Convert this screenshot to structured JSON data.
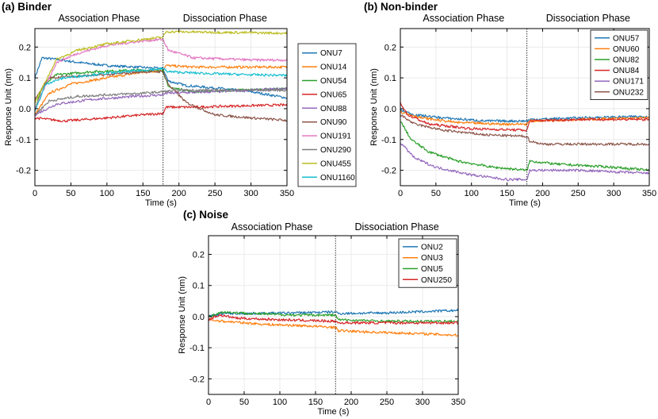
{
  "chart_data": [
    {
      "type": "line",
      "title": "(a) Binder",
      "phase_labels": [
        "Association Phase",
        "Dissociation Phase"
      ],
      "phase_split": 178,
      "xlabel": "Time (s)",
      "ylabel": "Response Unit (nm)",
      "xlim": [
        0,
        350
      ],
      "ylim": [
        -0.25,
        0.26
      ],
      "xticks": [
        0,
        50,
        100,
        150,
        200,
        250,
        300,
        350
      ],
      "yticks": [
        -0.2,
        -0.1,
        0.0,
        0.1,
        0.2
      ],
      "legend_position": "outside-right",
      "series": [
        {
          "name": "ONU7",
          "color": "#1f77b4",
          "points": [
            [
              0,
              0.1
            ],
            [
              10,
              0.165
            ],
            [
              30,
              0.16
            ],
            [
              60,
              0.15
            ],
            [
              100,
              0.14
            ],
            [
              140,
              0.135
            ],
            [
              178,
              0.13
            ],
            [
              185,
              0.09
            ],
            [
              210,
              0.075
            ],
            [
              260,
              0.065
            ],
            [
              300,
              0.055
            ],
            [
              350,
              0.035
            ]
          ]
        },
        {
          "name": "ONU14",
          "color": "#ff7f0e",
          "points": [
            [
              0,
              -0.02
            ],
            [
              20,
              0.05
            ],
            [
              50,
              0.08
            ],
            [
              100,
              0.1
            ],
            [
              140,
              0.115
            ],
            [
              178,
              0.125
            ],
            [
              182,
              0.14
            ],
            [
              220,
              0.135
            ],
            [
              300,
              0.135
            ],
            [
              350,
              0.135
            ]
          ]
        },
        {
          "name": "ONU54",
          "color": "#2ca02c",
          "points": [
            [
              0,
              0.0
            ],
            [
              10,
              0.07
            ],
            [
              30,
              0.11
            ],
            [
              80,
              0.12
            ],
            [
              140,
              0.125
            ],
            [
              178,
              0.125
            ],
            [
              185,
              0.07
            ],
            [
              220,
              0.055
            ],
            [
              280,
              0.06
            ],
            [
              350,
              0.065
            ]
          ]
        },
        {
          "name": "ONU65",
          "color": "#d62728",
          "points": [
            [
              0,
              -0.03
            ],
            [
              40,
              -0.04
            ],
            [
              100,
              -0.03
            ],
            [
              150,
              -0.02
            ],
            [
              178,
              -0.015
            ],
            [
              182,
              0.005
            ],
            [
              220,
              0.005
            ],
            [
              300,
              0.01
            ],
            [
              350,
              0.012
            ]
          ]
        },
        {
          "name": "ONU88",
          "color": "#9467bd",
          "points": [
            [
              0,
              -0.02
            ],
            [
              30,
              0.015
            ],
            [
              80,
              0.03
            ],
            [
              140,
              0.04
            ],
            [
              178,
              0.045
            ],
            [
              182,
              0.05
            ],
            [
              250,
              0.055
            ],
            [
              350,
              0.065
            ]
          ]
        },
        {
          "name": "ONU90",
          "color": "#8c564b",
          "points": [
            [
              0,
              0.03
            ],
            [
              20,
              0.1
            ],
            [
              50,
              0.105
            ],
            [
              100,
              0.11
            ],
            [
              150,
              0.12
            ],
            [
              178,
              0.12
            ],
            [
              185,
              0.08
            ],
            [
              210,
              0.02
            ],
            [
              250,
              -0.02
            ],
            [
              300,
              -0.03
            ],
            [
              350,
              -0.038
            ]
          ]
        },
        {
          "name": "ONU191",
          "color": "#e377c2",
          "points": [
            [
              0,
              0.0
            ],
            [
              30,
              0.15
            ],
            [
              60,
              0.18
            ],
            [
              100,
              0.205
            ],
            [
              150,
              0.22
            ],
            [
              178,
              0.225
            ],
            [
              185,
              0.19
            ],
            [
              220,
              0.165
            ],
            [
              300,
              0.158
            ],
            [
              350,
              0.158
            ]
          ]
        },
        {
          "name": "ONU290",
          "color": "#7f7f7f",
          "points": [
            [
              0,
              -0.02
            ],
            [
              20,
              0.025
            ],
            [
              60,
              0.04
            ],
            [
              100,
              0.045
            ],
            [
              150,
              0.05
            ],
            [
              178,
              0.055
            ],
            [
              200,
              0.06
            ],
            [
              300,
              0.06
            ],
            [
              350,
              0.06
            ]
          ]
        },
        {
          "name": "ONU455",
          "color": "#bcbd22",
          "points": [
            [
              0,
              0.02
            ],
            [
              30,
              0.16
            ],
            [
              60,
              0.19
            ],
            [
              100,
              0.21
            ],
            [
              150,
              0.225
            ],
            [
              178,
              0.232
            ],
            [
              182,
              0.25
            ],
            [
              250,
              0.248
            ],
            [
              350,
              0.245
            ]
          ]
        },
        {
          "name": "ONU1160",
          "color": "#17becf",
          "points": [
            [
              0,
              -0.01
            ],
            [
              15,
              0.08
            ],
            [
              40,
              0.1
            ],
            [
              100,
              0.115
            ],
            [
              178,
              0.13
            ],
            [
              185,
              0.12
            ],
            [
              230,
              0.115
            ],
            [
              300,
              0.11
            ],
            [
              350,
              0.108
            ]
          ]
        }
      ]
    },
    {
      "type": "line",
      "title": "(b) Non-binder",
      "phase_labels": [
        "Association Phase",
        "Dissociation Phase"
      ],
      "phase_split": 178,
      "xlabel": "Time (s)",
      "ylabel": "Response Unit (nm)",
      "xlim": [
        0,
        350
      ],
      "ylim": [
        -0.25,
        0.26
      ],
      "xticks": [
        0,
        50,
        100,
        150,
        200,
        250,
        300,
        350
      ],
      "yticks": [
        -0.2,
        -0.1,
        0.0,
        0.1,
        0.2
      ],
      "legend_position": "top-right",
      "series": [
        {
          "name": "ONU57",
          "color": "#1f77b4",
          "points": [
            [
              0,
              -0.005
            ],
            [
              20,
              -0.02
            ],
            [
              60,
              -0.03
            ],
            [
              120,
              -0.04
            ],
            [
              178,
              -0.04
            ],
            [
              182,
              -0.035
            ],
            [
              250,
              -0.03
            ],
            [
              350,
              -0.025
            ]
          ]
        },
        {
          "name": "ONU60",
          "color": "#ff7f0e",
          "points": [
            [
              0,
              -0.01
            ],
            [
              30,
              -0.03
            ],
            [
              80,
              -0.045
            ],
            [
              140,
              -0.05
            ],
            [
              178,
              -0.05
            ],
            [
              182,
              -0.04
            ],
            [
              250,
              -0.035
            ],
            [
              350,
              -0.03
            ]
          ]
        },
        {
          "name": "ONU82",
          "color": "#2ca02c",
          "points": [
            [
              0,
              -0.04
            ],
            [
              15,
              -0.1
            ],
            [
              40,
              -0.14
            ],
            [
              80,
              -0.17
            ],
            [
              130,
              -0.19
            ],
            [
              178,
              -0.2
            ],
            [
              182,
              -0.17
            ],
            [
              220,
              -0.18
            ],
            [
              300,
              -0.19
            ],
            [
              350,
              -0.2
            ]
          ]
        },
        {
          "name": "ONU84",
          "color": "#d62728",
          "points": [
            [
              0,
              0.02
            ],
            [
              10,
              -0.02
            ],
            [
              40,
              -0.05
            ],
            [
              100,
              -0.065
            ],
            [
              178,
              -0.07
            ],
            [
              182,
              -0.04
            ],
            [
              250,
              -0.035
            ],
            [
              350,
              -0.035
            ]
          ]
        },
        {
          "name": "ONU171",
          "color": "#9467bd",
          "points": [
            [
              0,
              -0.11
            ],
            [
              20,
              -0.16
            ],
            [
              50,
              -0.19
            ],
            [
              100,
              -0.215
            ],
            [
              150,
              -0.23
            ],
            [
              178,
              -0.23
            ],
            [
              182,
              -0.2
            ],
            [
              250,
              -0.2
            ],
            [
              350,
              -0.21
            ]
          ]
        },
        {
          "name": "ONU232",
          "color": "#8c564b",
          "points": [
            [
              0,
              -0.02
            ],
            [
              20,
              -0.05
            ],
            [
              60,
              -0.07
            ],
            [
              120,
              -0.085
            ],
            [
              178,
              -0.09
            ],
            [
              182,
              -0.105
            ],
            [
              200,
              -0.115
            ],
            [
              260,
              -0.115
            ],
            [
              350,
              -0.115
            ]
          ]
        }
      ]
    },
    {
      "type": "line",
      "title": "(c) Noise",
      "phase_labels": [
        "Association Phase",
        "Dissociation Phase"
      ],
      "phase_split": 178,
      "xlabel": "Time (s)",
      "ylabel": "Response Unit (nm)",
      "xlim": [
        0,
        350
      ],
      "ylim": [
        -0.25,
        0.26
      ],
      "xticks": [
        0,
        50,
        100,
        150,
        200,
        250,
        300,
        350
      ],
      "yticks": [
        -0.2,
        -0.1,
        0.0,
        0.1,
        0.2
      ],
      "legend_position": "top-right",
      "series": [
        {
          "name": "ONU2",
          "color": "#1f77b4",
          "points": [
            [
              0,
              0.0
            ],
            [
              20,
              0.01
            ],
            [
              60,
              0.01
            ],
            [
              120,
              0.012
            ],
            [
              178,
              0.015
            ],
            [
              182,
              0.01
            ],
            [
              250,
              0.012
            ],
            [
              350,
              0.02
            ]
          ]
        },
        {
          "name": "ONU3",
          "color": "#ff7f0e",
          "points": [
            [
              0,
              -0.01
            ],
            [
              20,
              -0.015
            ],
            [
              80,
              -0.025
            ],
            [
              140,
              -0.03
            ],
            [
              178,
              -0.035
            ],
            [
              182,
              -0.045
            ],
            [
              230,
              -0.05
            ],
            [
              300,
              -0.055
            ],
            [
              350,
              -0.06
            ]
          ]
        },
        {
          "name": "ONU5",
          "color": "#2ca02c",
          "points": [
            [
              0,
              0.0
            ],
            [
              20,
              0.015
            ],
            [
              60,
              0.01
            ],
            [
              120,
              0.005
            ],
            [
              178,
              0.005
            ],
            [
              182,
              -0.01
            ],
            [
              250,
              -0.015
            ],
            [
              350,
              -0.015
            ]
          ]
        },
        {
          "name": "ONU250",
          "color": "#d62728",
          "points": [
            [
              0,
              -0.01
            ],
            [
              15,
              0.005
            ],
            [
              40,
              -0.005
            ],
            [
              100,
              -0.01
            ],
            [
              178,
              -0.015
            ],
            [
              182,
              -0.02
            ],
            [
              250,
              -0.02
            ],
            [
              350,
              -0.02
            ]
          ]
        }
      ]
    }
  ]
}
